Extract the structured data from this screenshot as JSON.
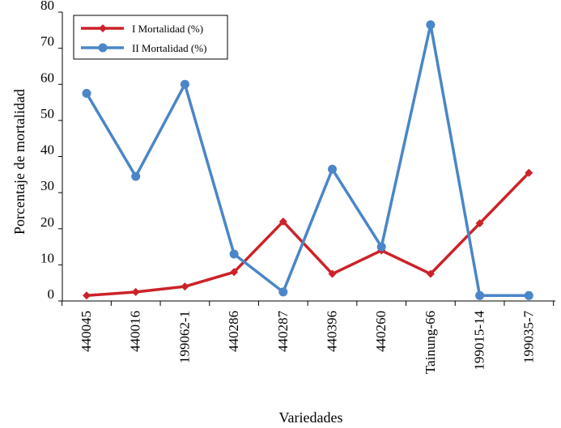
{
  "chart_data": {
    "type": "line",
    "title": "",
    "xlabel": "Variedades",
    "ylabel": "Porcentaje de mortalidad",
    "ylim": [
      0,
      80
    ],
    "yticks": [
      "0",
      "10",
      "20",
      "30",
      "40",
      "50",
      "60",
      "70",
      "80"
    ],
    "categories": [
      "440045",
      "440016",
      "199062-1",
      "440286",
      "440287",
      "440396",
      "440260",
      "Tainung-66",
      "199015-14",
      "199035-7"
    ],
    "grid": false,
    "legend_position": "top-left",
    "series": [
      {
        "name": "I Mortalidad (%)",
        "color": "#cc2229",
        "marker": "diamond",
        "values": [
          1.5,
          2.5,
          4,
          8,
          22,
          7.5,
          14,
          7.5,
          21.5,
          35.5
        ]
      },
      {
        "name": "II Mortalidad (%)",
        "color": "#4a86c8",
        "marker": "circle",
        "values": [
          57.5,
          34.5,
          60,
          13,
          2.5,
          36.5,
          15,
          76.5,
          1.5,
          1.5
        ]
      }
    ]
  }
}
